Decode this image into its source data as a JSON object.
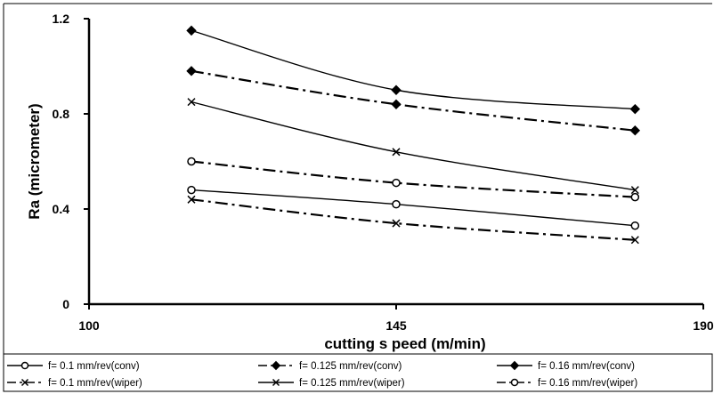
{
  "chart_data": {
    "type": "line",
    "title": "",
    "xlabel": "cutting s peed (m/min)",
    "ylabel": "Ra (micrometer)",
    "xlim": [
      100,
      190
    ],
    "ylim": [
      0,
      1.2
    ],
    "xticks": [
      100,
      145,
      190
    ],
    "xtick_labels": [
      "100",
      "145",
      "190"
    ],
    "yticks": [
      0,
      0.4,
      0.8,
      1.2
    ],
    "ytick_labels": [
      "0",
      "0.4",
      "0.8",
      "1.2"
    ],
    "grid": false,
    "legend_position": "bottom",
    "x": [
      115,
      145,
      180
    ],
    "series": [
      {
        "name": "f= 0.1 mm/rev(conv)",
        "values": [
          0.48,
          0.42,
          0.33
        ],
        "marker": "circle",
        "line": "solid",
        "color": "#000000"
      },
      {
        "name": "f= 0.125 mm/rev(conv)",
        "values": [
          0.98,
          0.84,
          0.73
        ],
        "marker": "diamond",
        "line": "dashdot",
        "color": "#000000"
      },
      {
        "name": "f= 0.16 mm/rev(conv)",
        "values": [
          1.15,
          0.9,
          0.82
        ],
        "marker": "diamond",
        "line": "solid",
        "color": "#000000"
      },
      {
        "name": "f= 0.1 mm/rev(wiper)",
        "values": [
          0.44,
          0.34,
          0.27
        ],
        "marker": "x",
        "line": "dashdot",
        "color": "#000000"
      },
      {
        "name": "f= 0.125 mm/rev(wiper)",
        "values": [
          0.85,
          0.64,
          0.48
        ],
        "marker": "x",
        "line": "solid",
        "color": "#000000"
      },
      {
        "name": "f= 0.16 mm/rev(wiper)",
        "values": [
          0.6,
          0.51,
          0.45
        ],
        "marker": "circle",
        "line": "dashdot",
        "color": "#000000"
      }
    ]
  }
}
